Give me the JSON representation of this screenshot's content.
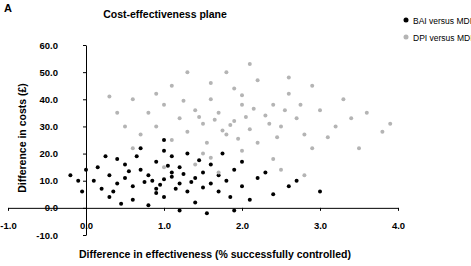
{
  "chart_data": {
    "type": "scatter",
    "title": "Cost-effectiveness plane",
    "annotations": [
      "A"
    ],
    "x_label": "Difference in effectiveness (% successfully controlled)",
    "y_label": "Difference in costs (£)",
    "xlim": [
      -1.0,
      4.0
    ],
    "ylim": [
      -10.0,
      60.0
    ],
    "xticks": [
      {
        "value": -1,
        "label": "-1.0"
      },
      {
        "value": 0,
        "label": "0.0"
      },
      {
        "value": 1,
        "label": "1.0"
      },
      {
        "value": 2,
        "label": "2.0"
      },
      {
        "value": 3,
        "label": "3.0"
      },
      {
        "value": 4,
        "label": "4.0"
      }
    ],
    "yticks": [
      {
        "value": -10,
        "label": "-10.0"
      },
      {
        "value": 0,
        "label": "0.0"
      },
      {
        "value": 10,
        "label": "10.0"
      },
      {
        "value": 20,
        "label": "20.0"
      },
      {
        "value": 30,
        "label": "30.0"
      },
      {
        "value": 40,
        "label": "40.0"
      },
      {
        "value": 50,
        "label": "50.0"
      },
      {
        "value": 60,
        "label": "60.0"
      }
    ],
    "grid": false,
    "legend": "top-right",
    "marker": "circle",
    "series": [
      {
        "name": "BAI versus MDI",
        "color": "#000000",
        "x": [
          1.0,
          0.8,
          1.2,
          0.6,
          1.4,
          0.9,
          1.1,
          0.5,
          1.3,
          0.7,
          1.6,
          0.4,
          1.0,
          1.5,
          0.3,
          1.8,
          0.2,
          1.2,
          0.9,
          1.7,
          2.0,
          0.1,
          0.6,
          1.4,
          2.2,
          0.0,
          -0.1,
          1.1,
          0.5,
          2.4,
          1.9,
          0.8,
          1.3,
          2.6,
          -0.2,
          0.3,
          1.6,
          0.7,
          1.0,
          2.1,
          1.2,
          0.4,
          0.9,
          1.5,
          1.1,
          0.75,
          1.25,
          0.95,
          1.35,
          0.55,
          1.05,
          1.7,
          0.35,
          2.3,
          1.85,
          0.15,
          2.7,
          1.45,
          0.65,
          -0.05,
          3.0,
          1.55,
          0.85,
          1.15,
          1.9,
          0.45,
          2.0,
          1.0,
          1.75,
          0.25
        ],
        "values": [
          10.5,
          12,
          9,
          8,
          11,
          7,
          13,
          11,
          6,
          14,
          9,
          9,
          4,
          13,
          12,
          10,
          7,
          15,
          17,
          6,
          8,
          10,
          3,
          2,
          11,
          14,
          10,
          19,
          16,
          5,
          14,
          1,
          20,
          8,
          12,
          4,
          16,
          22,
          25,
          3,
          -1,
          18,
          5.5,
          7.5,
          11.5,
          9.5,
          12.5,
          8.5,
          9.5,
          13.5,
          15.5,
          12,
          6,
          13,
          4,
          15,
          10,
          17.5,
          19,
          6,
          6,
          -2,
          10,
          7,
          -1,
          1.5,
          17,
          21,
          20,
          19
        ]
      },
      {
        "name": "DPI versus MDI",
        "color": "#b4b4b4",
        "x": [
          1.9,
          1.7,
          2.1,
          1.5,
          2.3,
          1.8,
          2.0,
          1.4,
          2.2,
          1.6,
          2.5,
          1.3,
          2.4,
          1.2,
          2.7,
          1.1,
          1.9,
          2.0,
          1.0,
          2.8,
          1.6,
          2.6,
          0.9,
          3.0,
          1.5,
          2.2,
          0.8,
          3.2,
          1.8,
          2.9,
          0.7,
          1.4,
          2.4,
          3.4,
          1.1,
          2.1,
          0.6,
          3.6,
          3.8,
          3.9,
          0.5,
          1.0,
          2.6,
          1.7,
          0.4,
          3.3,
          2.8,
          1.3,
          0.6,
          2.5,
          1.85,
          2.05,
          1.65,
          2.15,
          1.75,
          1.95,
          2.35,
          1.45,
          2.55,
          1.25,
          2.75,
          3.1,
          0.9,
          1.55,
          2.45,
          3.5,
          2.0,
          1.6,
          2.9,
          0.3
        ],
        "values": [
          32,
          35,
          29,
          31,
          34,
          27,
          38,
          36,
          24,
          40,
          30,
          28,
          38,
          33,
          33,
          25,
          44,
          21,
          38,
          27,
          46,
          42,
          30,
          36,
          20,
          47,
          35,
          30,
          50,
          22,
          27,
          16,
          18,
          33,
          45,
          53,
          22,
          35,
          28,
          31,
          30,
          15,
          48,
          13,
          35,
          40,
          12,
          50,
          40,
          14,
          30.5,
          33.5,
          32.5,
          36.5,
          28.5,
          25.5,
          31,
          33.5,
          36,
          39.5,
          38,
          26,
          42,
          24,
          26,
          22,
          41.5,
          18.5,
          45,
          41
        ]
      }
    ]
  }
}
